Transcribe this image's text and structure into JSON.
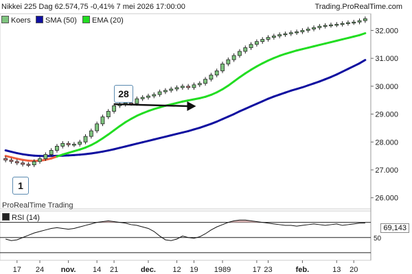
{
  "header": {
    "title": "Nikkei 225 Dag 62.574,75 -0,41% 7 mei 2026 17:00:00",
    "source": "Trading.ProRealTime.com"
  },
  "legend": {
    "price": "Koers",
    "sma": "SMA (50)",
    "ema": "EMA (20)"
  },
  "watermark": "ProRealTime Trading",
  "annotations": {
    "label_1": "1",
    "label_28": "28"
  },
  "rsi": {
    "legend": "RSI (14)",
    "value": "69,143",
    "mid_label": "50"
  },
  "colors": {
    "up": "#7fc47f",
    "down": "#d98080",
    "sma": "#1010a0",
    "ema_early": "#f06040",
    "ema": "#22dd22",
    "rsi_fill": "#d8b4b4",
    "arrow": "#111111"
  },
  "chart_data": {
    "type": "candlestick",
    "y_ticks": [
      "26.000",
      "27.000",
      "28.000",
      "29.000",
      "30.000",
      "31.000",
      "32.000"
    ],
    "ylim": [
      25600,
      32600
    ],
    "x_ticks": [
      {
        "i": 2,
        "label": "17"
      },
      {
        "i": 6,
        "label": "24"
      },
      {
        "i": 11,
        "label": "nov."
      },
      {
        "i": 16,
        "label": "14"
      },
      {
        "i": 19,
        "label": "21"
      },
      {
        "i": 25,
        "label": "dec."
      },
      {
        "i": 30,
        "label": "12"
      },
      {
        "i": 33,
        "label": "19"
      },
      {
        "i": 38,
        "label": "1989"
      },
      {
        "i": 44,
        "label": "17"
      },
      {
        "i": 46,
        "label": "23"
      },
      {
        "i": 52,
        "label": "feb."
      },
      {
        "i": 58,
        "label": "13"
      },
      {
        "i": 61,
        "label": "20"
      }
    ],
    "series": [
      {
        "name": "Koers",
        "closes": [
          27350,
          27300,
          27250,
          27200,
          27180,
          27300,
          27400,
          27550,
          27700,
          27850,
          27950,
          27900,
          27920,
          28000,
          28200,
          28400,
          28650,
          28900,
          29100,
          29300,
          29350,
          29400,
          29380,
          29550,
          29600,
          29650,
          29700,
          29800,
          29850,
          29900,
          29950,
          30000,
          29950,
          30050,
          30100,
          30250,
          30400,
          30550,
          30800,
          30950,
          31100,
          31250,
          31380,
          31500,
          31600,
          31680,
          31750,
          31800,
          31850,
          31880,
          31920,
          31950,
          32000,
          32050,
          32100,
          32150,
          32180,
          32200,
          32220,
          32250,
          32280,
          32300,
          32350,
          32420
        ]
      },
      {
        "name": "SMA (50)",
        "values": [
          27700,
          27650,
          27600,
          27560,
          27530,
          27510,
          27500,
          27495,
          27500,
          27505,
          27510,
          27520,
          27530,
          27545,
          27565,
          27590,
          27620,
          27655,
          27695,
          27740,
          27790,
          27840,
          27890,
          27940,
          27990,
          28040,
          28090,
          28140,
          28190,
          28240,
          28290,
          28340,
          28390,
          28450,
          28510,
          28580,
          28650,
          28730,
          28820,
          28910,
          29000,
          29100,
          29190,
          29280,
          29370,
          29460,
          29550,
          29630,
          29700,
          29770,
          29840,
          29900,
          29960,
          30030,
          30100,
          30170,
          30250,
          30330,
          30420,
          30520,
          30620,
          30720,
          30820,
          30940
        ]
      },
      {
        "name": "EMA (20)",
        "values": [
          27500,
          27450,
          27400,
          27360,
          27330,
          27320,
          27330,
          27360,
          27410,
          27480,
          27550,
          27610,
          27670,
          27730,
          27800,
          27890,
          28000,
          28130,
          28270,
          28420,
          28570,
          28710,
          28830,
          28940,
          29030,
          29110,
          29180,
          29240,
          29300,
          29350,
          29400,
          29450,
          29490,
          29530,
          29570,
          29620,
          29690,
          29780,
          29890,
          30020,
          30170,
          30320,
          30460,
          30590,
          30710,
          30820,
          30920,
          31010,
          31090,
          31160,
          31220,
          31280,
          31330,
          31380,
          31430,
          31480,
          31530,
          31580,
          31630,
          31680,
          31730,
          31780,
          31830,
          31900
        ]
      },
      {
        "name": "RSI (14)",
        "values": [
          48,
          46,
          47,
          50,
          53,
          56,
          58,
          60,
          62,
          63,
          62,
          61,
          62,
          64,
          66,
          68,
          70,
          71,
          72,
          71,
          70,
          69,
          67,
          66,
          64,
          62,
          58,
          52,
          47,
          46,
          48,
          52,
          50,
          49,
          51,
          55,
          60,
          64,
          67,
          70,
          72,
          73,
          73,
          72,
          71,
          70,
          69,
          68,
          67,
          66,
          66,
          65,
          66,
          67,
          68,
          67,
          66,
          67,
          68,
          66,
          67,
          68,
          69,
          69.143
        ]
      }
    ],
    "rsi_levels": [
      30,
      50,
      70
    ],
    "rsi_ylim": [
      20,
      85
    ]
  }
}
